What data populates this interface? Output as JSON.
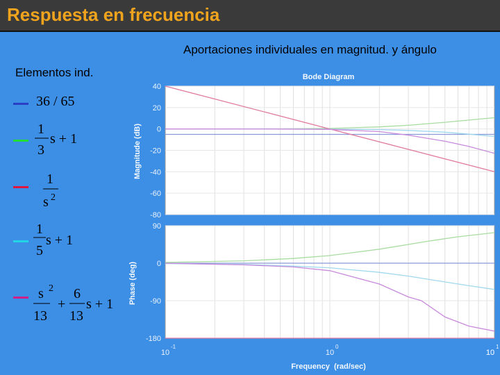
{
  "slide": {
    "title": "Respuesta en frecuencia",
    "subtitle": "Aportaciones individuales en magnitud. y ángulo",
    "elements_label": "Elementos ind."
  },
  "legend": [
    {
      "color": "#2a3fc4",
      "parts": {
        "a": "36 / 65"
      }
    },
    {
      "color": "#22dd33",
      "parts": {
        "num": "1",
        "den": "3",
        "rest": "s + 1"
      }
    },
    {
      "color": "#e01840",
      "parts": {
        "num": "1",
        "den": "s",
        "exp": "2"
      }
    },
    {
      "color": "#22d6e6",
      "parts": {
        "num": "1",
        "den": "5",
        "rest": "s + 1"
      }
    },
    {
      "color": "#d0208a",
      "parts": {
        "num1": "s",
        "exp": "2",
        "den1": "13",
        "plus": "+",
        "num2": "6",
        "den2": "13",
        "rest": "s + 1"
      }
    }
  ],
  "chart_data": {
    "type": "line",
    "title": "Bode Diagram",
    "xlabel": "Frequency  (rad/sec)",
    "x_scale": "log",
    "xlim": [
      0.1,
      10
    ],
    "x_ticks": [
      {
        "base": "10",
        "exp": "-1"
      },
      {
        "base": "10",
        "exp": "0"
      },
      {
        "base": "10",
        "exp": "1"
      },
      {
        "base": "10",
        "exp": ""
      }
    ],
    "grid": true,
    "magnitude": {
      "ylabel": "Magnitude (dB)",
      "ylim": [
        -80,
        40
      ],
      "yticks": [
        "40",
        "20",
        "0",
        "-20",
        "-40",
        "-60",
        "-80"
      ],
      "series": [
        {
          "color": "#8a9ad8",
          "x": [
            0.1,
            10
          ],
          "y": [
            -5.1,
            -5.1
          ]
        },
        {
          "color": "#a8dca0",
          "x": [
            0.1,
            0.5,
            1,
            2,
            3,
            5,
            7,
            10
          ],
          "y": [
            0,
            0.1,
            0.5,
            1.9,
            3.4,
            6.2,
            8.3,
            10.5
          ]
        },
        {
          "color": "#e07aa0",
          "x": [
            0.1,
            1,
            10
          ],
          "y": [
            40,
            0,
            -40
          ]
        },
        {
          "color": "#a0d8ee",
          "x": [
            0.1,
            0.5,
            1,
            2,
            3,
            5,
            7,
            10
          ],
          "y": [
            0,
            0,
            -0.2,
            -0.6,
            -1.4,
            -3.0,
            -4.9,
            -7.0
          ]
        },
        {
          "color": "#c88adc",
          "x": [
            0.1,
            0.5,
            1,
            2,
            3,
            5,
            7,
            10
          ],
          "y": [
            0,
            -0.1,
            -0.4,
            -2.5,
            -5.8,
            -11.5,
            -16.4,
            -22.7
          ]
        }
      ]
    },
    "phase": {
      "ylabel": "Phase (deg)",
      "ylim": [
        -180,
        90
      ],
      "yticks": [
        "90",
        "0",
        "-90",
        "-180"
      ],
      "series": [
        {
          "color": "#8a9ad8",
          "x": [
            0.1,
            10
          ],
          "y": [
            0,
            0
          ]
        },
        {
          "color": "#a8dca0",
          "x": [
            0.1,
            0.3,
            0.6,
            1,
            2,
            3,
            4,
            6,
            10
          ],
          "y": [
            2,
            5.7,
            11.3,
            18.4,
            33.7,
            45,
            53.1,
            63.4,
            73.3
          ]
        },
        {
          "color": "#e07aa0",
          "x": [
            0.1,
            10
          ],
          "y": [
            -180,
            -180
          ]
        },
        {
          "color": "#a0d8ee",
          "x": [
            0.1,
            0.3,
            0.6,
            1,
            2,
            3,
            5,
            7,
            10
          ],
          "y": [
            -1,
            -3,
            -7,
            -11,
            -22,
            -31,
            -45,
            -54,
            -63
          ]
        },
        {
          "color": "#c88adc",
          "x": [
            0.1,
            0.3,
            0.6,
            1,
            2,
            3,
            3.6,
            5,
            7,
            10
          ],
          "y": [
            0,
            -4,
            -9,
            -18,
            -50,
            -81,
            -90,
            -129,
            -151,
            -163
          ]
        }
      ]
    }
  }
}
